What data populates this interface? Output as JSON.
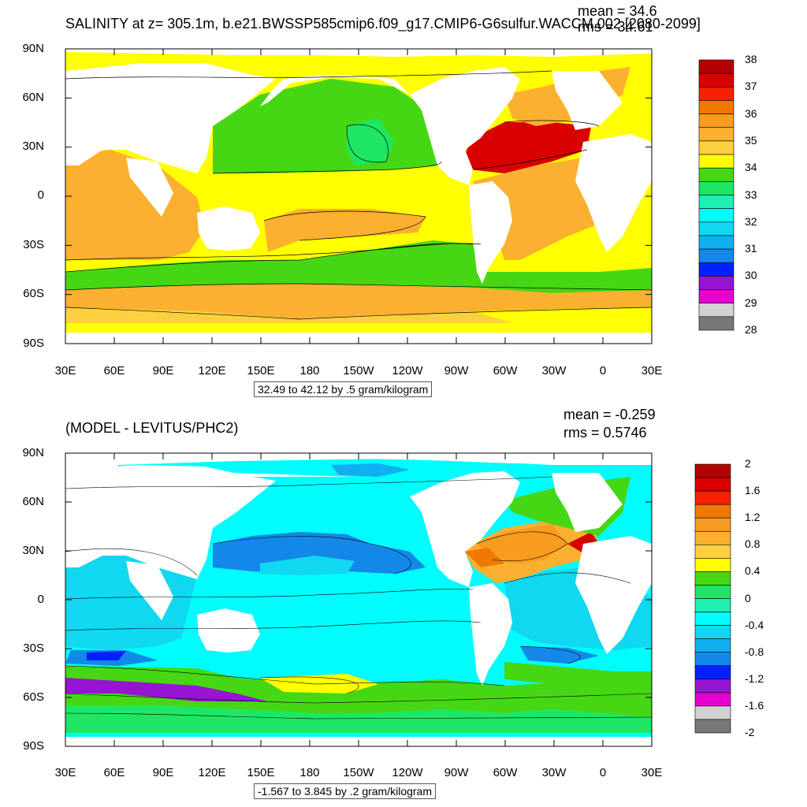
{
  "top_panel": {
    "title": "SALINITY at z= 305.1m, b.e21.BWSSP585cmip6.f09_g17.CMIP6-G6sulfur.WACCM.002 [2080-2099]",
    "mean_label": "mean = 34.6",
    "rms_label": "rms = 34.61",
    "range_label": "32.49 to 42.12 by .5 gram/kilogram",
    "lat_labels": [
      "90N",
      "60N",
      "30N",
      "0",
      "30S",
      "60S",
      "90S"
    ],
    "lon_labels": [
      "30E",
      "60E",
      "90E",
      "120E",
      "150E",
      "180",
      "150W",
      "120W",
      "90W",
      "60W",
      "30W",
      "0",
      "30E"
    ],
    "colorbar_labels": [
      "38",
      "37",
      "36",
      "35",
      "34",
      "33",
      "32",
      "31",
      "30",
      "29",
      "28"
    ],
    "colorbar_colors": [
      "#b40000",
      "#d80000",
      "#f82000",
      "#f07800",
      "#f89c20",
      "#fcb030",
      "#fcd040",
      "#ffff00",
      "#46d714",
      "#1ee664",
      "#1ef0b4",
      "#00fcfc",
      "#10d8f0",
      "#10b0f0",
      "#1488e8",
      "#0020ff",
      "#9614d2",
      "#e600d2",
      "#d2d2d2",
      "#787878"
    ]
  },
  "bottom_panel": {
    "title": "(MODEL - LEVITUS/PHC2)",
    "mean_label": "mean = -0.259",
    "rms_label": "rms = 0.5746",
    "range_label": "-1.567 to 3.845 by .2 gram/kilogram",
    "lat_labels": [
      "90N",
      "60N",
      "30N",
      "0",
      "30S",
      "60S",
      "90S"
    ],
    "lon_labels": [
      "30E",
      "60E",
      "90E",
      "120E",
      "150E",
      "180",
      "150W",
      "120W",
      "90W",
      "60W",
      "30W",
      "0",
      "30E"
    ],
    "colorbar_labels": [
      "2",
      "1.6",
      "1.2",
      "0.8",
      "0.4",
      "0",
      "-0.4",
      "-0.8",
      "-1.2",
      "-1.6",
      "-2"
    ],
    "colorbar_colors": [
      "#b40000",
      "#d80000",
      "#f82000",
      "#f07800",
      "#f89c20",
      "#fcb030",
      "#fcd040",
      "#ffff00",
      "#46d714",
      "#1ee664",
      "#1ef0b4",
      "#00fcfc",
      "#10d8f0",
      "#10b0f0",
      "#1488e8",
      "#0020ff",
      "#9614d2",
      "#e600d2",
      "#d2d2d2",
      "#787878"
    ]
  }
}
